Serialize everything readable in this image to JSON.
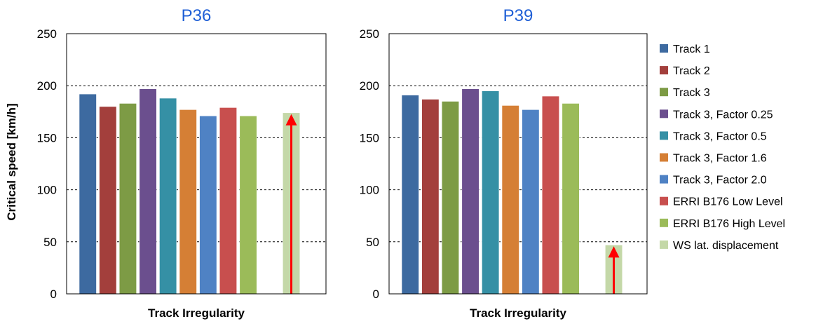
{
  "chart_data": {
    "type": "bar",
    "ylabel": "Critical speed [km/h]",
    "ylim": [
      0,
      250
    ],
    "yticks": [
      0,
      50,
      100,
      150,
      200,
      250
    ],
    "grid": "horizontal dashed",
    "legend_position": "right",
    "series": [
      {
        "name": "Track 1",
        "color": "#3d6aa0"
      },
      {
        "name": "Track 2",
        "color": "#a33f3c"
      },
      {
        "name": "Track 3",
        "color": "#7d9b45"
      },
      {
        "name": "Track 3, Factor 0.25",
        "color": "#6b4f8e"
      },
      {
        "name": "Track 3, Factor 0.5",
        "color": "#3590a5"
      },
      {
        "name": "Track 3, Factor 1.6",
        "color": "#d57f35"
      },
      {
        "name": "Track 3, Factor 2.0",
        "color": "#4f82c4"
      },
      {
        "name": "ERRI B176 Low Level",
        "color": "#c84f4e"
      },
      {
        "name": "ERRI B176 High Level",
        "color": "#9bbb59"
      },
      {
        "name": "WS lat. displacement",
        "color": "#c4d8a8"
      }
    ],
    "panels": [
      {
        "title": "P36",
        "xlabel": "Track Irregularity",
        "values": [
          192,
          180,
          183,
          197,
          188,
          177,
          171,
          179,
          171,
          174
        ],
        "arrow_value": 174
      },
      {
        "title": "P39",
        "xlabel": "Track Irregularity",
        "values": [
          191,
          187,
          185,
          197,
          195,
          181,
          177,
          190,
          183,
          47
        ],
        "arrow_value": 47
      }
    ]
  }
}
